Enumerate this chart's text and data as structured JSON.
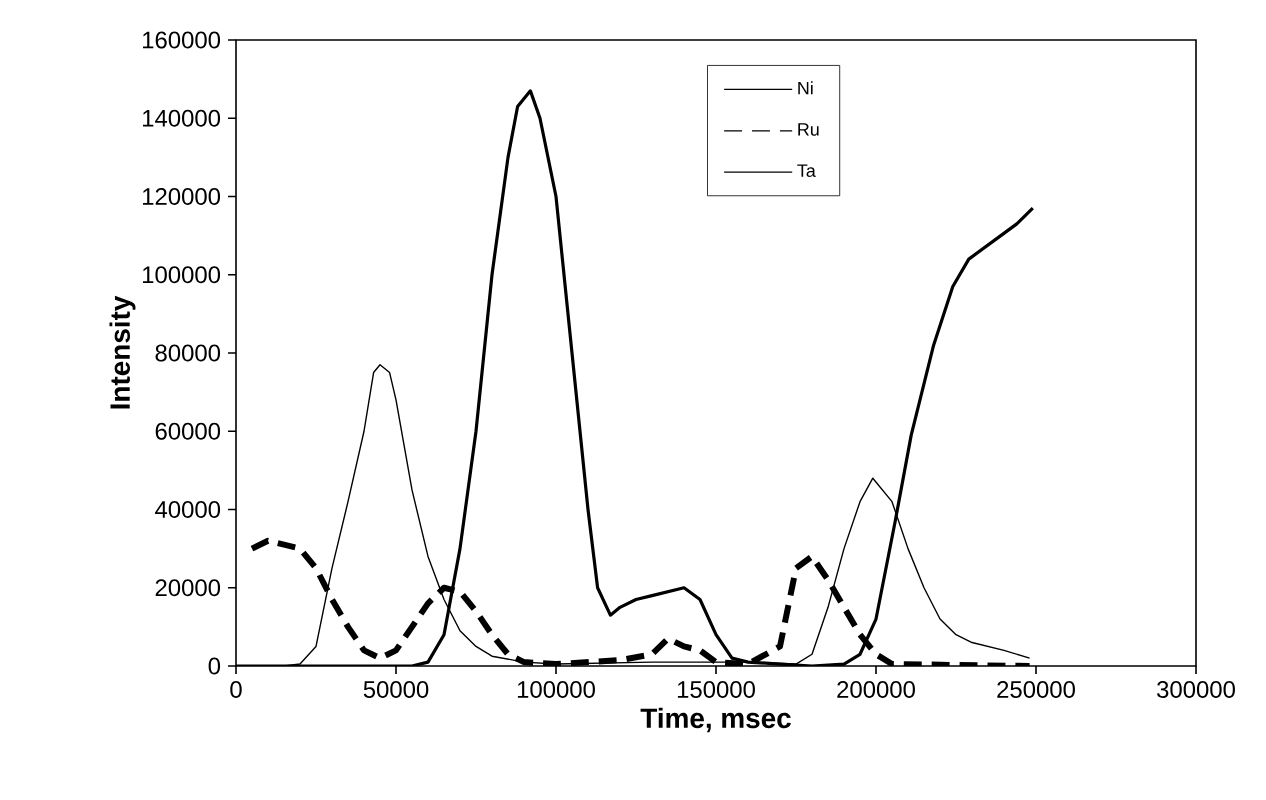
{
  "chart_data": {
    "type": "line",
    "xlabel": "Time, msec",
    "ylabel": "Intensity",
    "xlim": [
      0,
      300000
    ],
    "ylim": [
      0,
      160000
    ],
    "xticks": [
      0,
      50000,
      100000,
      150000,
      200000,
      250000,
      300000
    ],
    "yticks": [
      0,
      20000,
      40000,
      60000,
      80000,
      100000,
      120000,
      140000,
      160000
    ],
    "grid": false,
    "legend": "top",
    "marker": "none",
    "series": [
      {
        "name": "Ni",
        "color": "#000000",
        "line_style": "solid",
        "x": [
          0,
          15000,
          20000,
          25000,
          30000,
          35000,
          40000,
          43000,
          45000,
          48000,
          50000,
          55000,
          60000,
          65000,
          70000,
          75000,
          80000,
          90000,
          100000,
          130000,
          160000,
          175000,
          180000,
          185000,
          190000,
          195000,
          199000,
          205000,
          210000,
          215000,
          220000,
          225000,
          230000,
          240000,
          248000
        ],
        "values": [
          0,
          0,
          500,
          5000,
          25000,
          42000,
          60000,
          75000,
          77000,
          75000,
          68000,
          45000,
          28000,
          17000,
          9000,
          5000,
          2500,
          1000,
          500,
          1000,
          1000,
          500,
          3000,
          15000,
          30000,
          42000,
          48000,
          42000,
          30000,
          20000,
          12000,
          8000,
          6000,
          4000,
          2000
        ]
      },
      {
        "name": "Ru",
        "color": "#000000",
        "line_style": "dashed",
        "x": [
          5000,
          10000,
          15000,
          20000,
          25000,
          30000,
          35000,
          40000,
          45000,
          50000,
          55000,
          60000,
          65000,
          70000,
          75000,
          80000,
          85000,
          90000,
          100000,
          120000,
          130000,
          135000,
          140000,
          145000,
          150000,
          160000,
          170000,
          175000,
          180000,
          185000,
          190000,
          195000,
          200000,
          205000,
          248000
        ],
        "values": [
          30000,
          32000,
          31000,
          30000,
          25000,
          17000,
          10000,
          4000,
          2000,
          4000,
          10000,
          16000,
          20000,
          19000,
          14000,
          8000,
          3000,
          1000,
          500,
          1500,
          3000,
          7000,
          5000,
          4000,
          1000,
          500,
          5000,
          25000,
          28000,
          22000,
          15000,
          8000,
          3000,
          500,
          0
        ]
      },
      {
        "name": "Ta",
        "color": "#000000",
        "line_style": "solid",
        "x": [
          0,
          55000,
          60000,
          65000,
          70000,
          75000,
          80000,
          85000,
          88000,
          92000,
          95000,
          100000,
          105000,
          110000,
          113000,
          117000,
          120000,
          125000,
          130000,
          135000,
          140000,
          145000,
          150000,
          155000,
          160000,
          170000,
          180000,
          190000,
          195000,
          200000,
          206000,
          211000,
          218000,
          224000,
          229000,
          234000,
          239000,
          244000,
          249000
        ],
        "values": [
          0,
          0,
          1000,
          8000,
          30000,
          60000,
          100000,
          130000,
          143000,
          147000,
          140000,
          120000,
          80000,
          40000,
          20000,
          13000,
          15000,
          17000,
          18000,
          19000,
          20000,
          17000,
          8000,
          2000,
          1000,
          500,
          0,
          500,
          3000,
          12000,
          37000,
          59000,
          82000,
          97000,
          104000,
          107000,
          110000,
          113000,
          117000
        ]
      }
    ]
  }
}
